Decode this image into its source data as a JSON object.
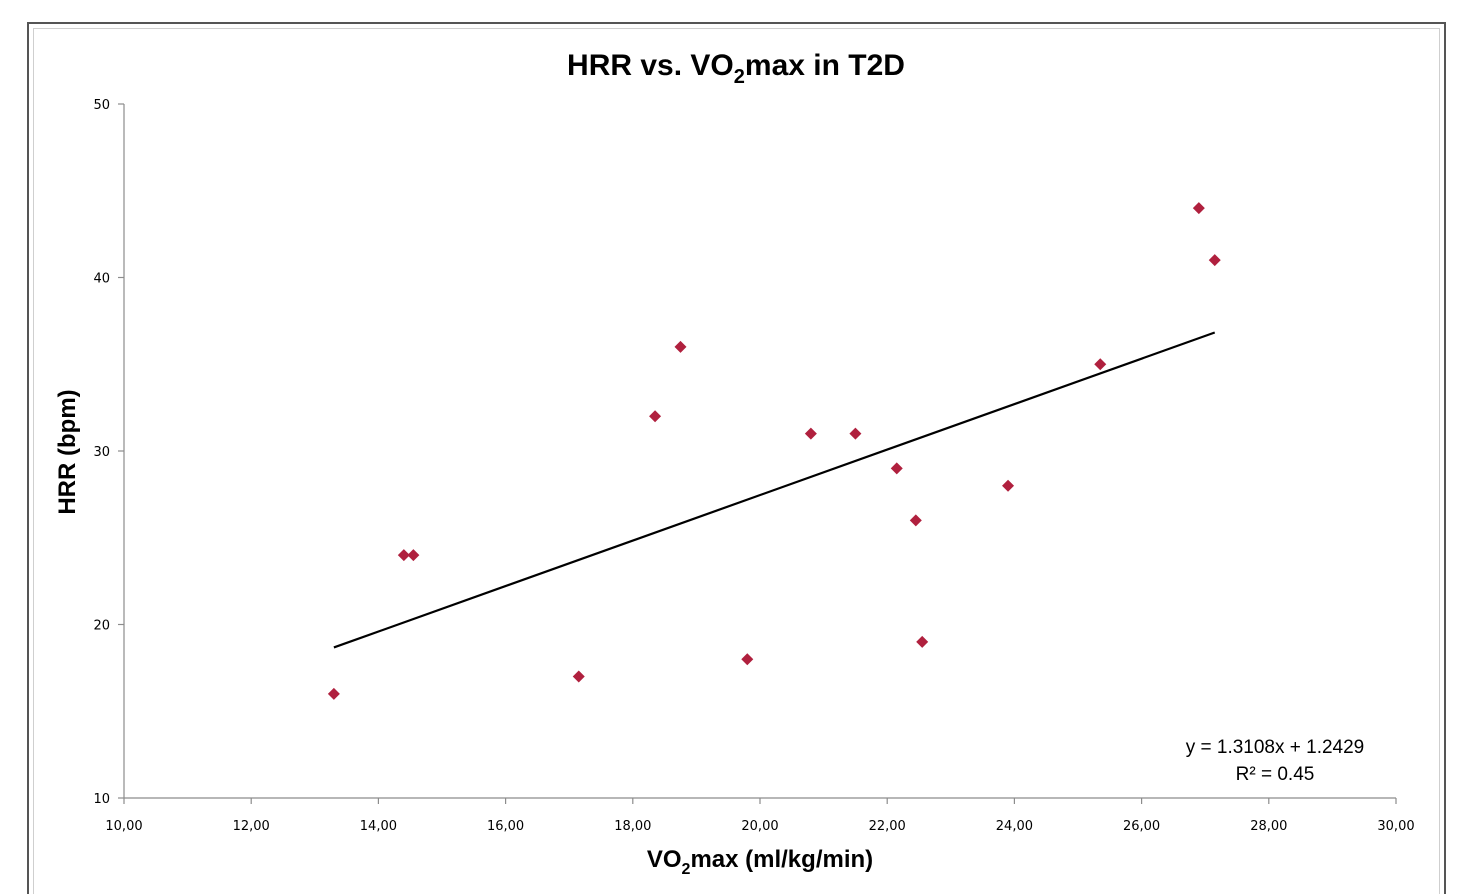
{
  "chart_data": {
    "type": "scatter",
    "title_parts": [
      "HRR vs. VO",
      "2",
      "max in T2D"
    ],
    "xlabel_parts": [
      "VO",
      "2",
      "max (ml/kg/min)"
    ],
    "ylabel": "HRR (bpm)",
    "xlim": [
      10,
      30
    ],
    "ylim": [
      10,
      50
    ],
    "x_ticks": [
      10,
      12,
      14,
      16,
      18,
      20,
      22,
      24,
      26,
      28,
      30
    ],
    "x_tick_labels": [
      "10,00",
      "12,00",
      "14,00",
      "16,00",
      "18,00",
      "20,00",
      "22,00",
      "24,00",
      "26,00",
      "28,00",
      "30,00"
    ],
    "y_ticks": [
      10,
      20,
      30,
      40,
      50
    ],
    "y_tick_labels": [
      "10",
      "20",
      "30",
      "40",
      "50"
    ],
    "grid": false,
    "legend": "none",
    "marker": "diamond",
    "marker_color": "#b0203e",
    "points": [
      {
        "x": 13.3,
        "y": 16
      },
      {
        "x": 14.4,
        "y": 24
      },
      {
        "x": 14.55,
        "y": 24
      },
      {
        "x": 17.15,
        "y": 17
      },
      {
        "x": 18.35,
        "y": 32
      },
      {
        "x": 18.75,
        "y": 36
      },
      {
        "x": 19.8,
        "y": 18
      },
      {
        "x": 20.8,
        "y": 31
      },
      {
        "x": 21.5,
        "y": 31
      },
      {
        "x": 22.15,
        "y": 29
      },
      {
        "x": 22.45,
        "y": 26
      },
      {
        "x": 22.55,
        "y": 19
      },
      {
        "x": 23.9,
        "y": 28
      },
      {
        "x": 25.35,
        "y": 35
      },
      {
        "x": 26.9,
        "y": 44
      },
      {
        "x": 27.15,
        "y": 41
      }
    ],
    "trendline": {
      "type": "linear",
      "slope": 1.3108,
      "intercept": 1.2429,
      "x_start": 13.3,
      "x_end": 27.15,
      "color": "#000000"
    },
    "equation_text": "y = 1.3108x + 1.2429",
    "r2_text": "R² = 0.45"
  }
}
